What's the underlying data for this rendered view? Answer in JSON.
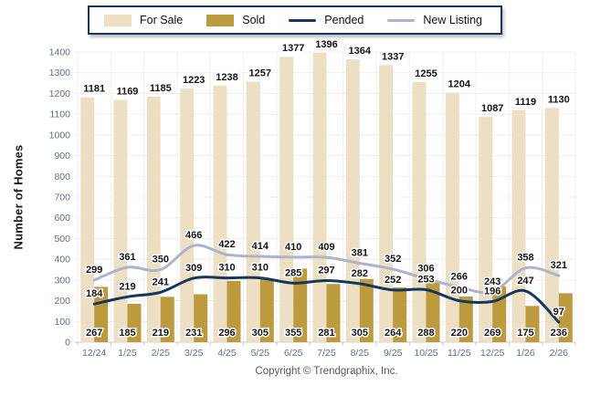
{
  "legend": {
    "items": [
      {
        "label": "For Sale",
        "swatch": "bar",
        "color": "#ecdfc4"
      },
      {
        "label": "Sold",
        "swatch": "bar",
        "color": "#bc9a3e"
      },
      {
        "label": "Pended",
        "swatch": "line",
        "color": "#17365d"
      },
      {
        "label": "New Listing",
        "swatch": "line",
        "color": "#aab4cb"
      }
    ],
    "border_color": "#17365d"
  },
  "chart_data": {
    "type": "combo",
    "categories": [
      "12/24",
      "1/25",
      "2/25",
      "3/25",
      "4/25",
      "5/25",
      "6/25",
      "7/25",
      "8/25",
      "9/25",
      "10/25",
      "11/25",
      "12/25",
      "1/26",
      "2/26"
    ],
    "series": [
      {
        "name": "For Sale",
        "type": "bar",
        "color": "#ecdfc4",
        "values": [
          1181,
          1169,
          1185,
          1223,
          1238,
          1257,
          1377,
          1396,
          1364,
          1337,
          1255,
          1204,
          1087,
          1119,
          1130
        ]
      },
      {
        "name": "Sold",
        "type": "bar",
        "color": "#bc9a3e",
        "values": [
          267,
          185,
          219,
          231,
          296,
          305,
          355,
          281,
          305,
          264,
          288,
          220,
          269,
          175,
          236
        ]
      },
      {
        "name": "Pended",
        "type": "line",
        "color": "#17365d",
        "values": [
          184,
          219,
          241,
          309,
          310,
          310,
          285,
          297,
          282,
          252,
          253,
          200,
          196,
          247,
          97
        ]
      },
      {
        "name": "New Listing",
        "type": "line",
        "color": "#aab4cb",
        "values": [
          299,
          361,
          350,
          466,
          422,
          414,
          410,
          409,
          381,
          352,
          306,
          266,
          243,
          358,
          321
        ]
      }
    ],
    "title": "",
    "xlabel": "",
    "ylabel": "Number of Homes",
    "ylim": [
      0,
      1400
    ],
    "ytick_step": 100,
    "grid": true,
    "legend_position": "top"
  },
  "colors": {
    "h_gridline": "#f3ece8",
    "v_gridline": "#eef0f4",
    "axis_line": "#cccccc",
    "tick_text": "#5e7183",
    "value_text": "#141414"
  },
  "footer": {
    "copyright": "Copyright © Trendgraphix, Inc."
  }
}
